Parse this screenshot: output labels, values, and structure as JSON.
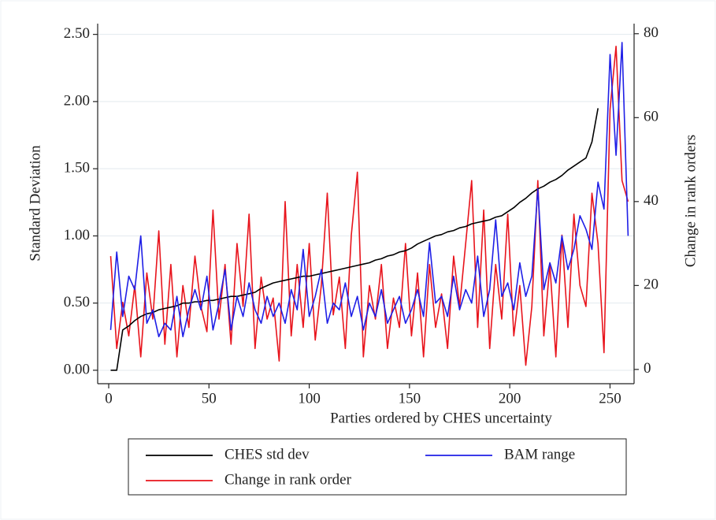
{
  "chart_data": {
    "type": "line",
    "x_label": "Parties ordered by CHES uncertainty",
    "y_label": "Standard Deviation",
    "y2_label": "Change in rank orders",
    "x": [
      1,
      4,
      7,
      10,
      13,
      16,
      19,
      22,
      25,
      28,
      31,
      34,
      37,
      40,
      43,
      46,
      49,
      52,
      55,
      58,
      61,
      64,
      67,
      70,
      73,
      76,
      79,
      82,
      85,
      88,
      91,
      94,
      97,
      100,
      103,
      106,
      109,
      112,
      115,
      118,
      121,
      124,
      127,
      130,
      133,
      136,
      139,
      142,
      145,
      148,
      151,
      154,
      157,
      160,
      163,
      166,
      169,
      172,
      175,
      178,
      181,
      184,
      187,
      190,
      193,
      196,
      199,
      202,
      205,
      208,
      211,
      214,
      217,
      220,
      223,
      226,
      229,
      232,
      235,
      238,
      241,
      244,
      247,
      250,
      253,
      256,
      259
    ],
    "series": [
      {
        "name": "CHES std dev",
        "color": "#000000",
        "axis": "y",
        "values": [
          0.0,
          0.0,
          0.3,
          0.33,
          0.37,
          0.4,
          0.42,
          0.43,
          0.45,
          0.46,
          0.47,
          0.48,
          0.5,
          0.5,
          0.51,
          0.51,
          0.52,
          0.52,
          0.53,
          0.54,
          0.55,
          0.55,
          0.56,
          0.57,
          0.58,
          0.61,
          0.63,
          0.65,
          0.66,
          0.67,
          0.68,
          0.69,
          0.7,
          0.7,
          0.71,
          0.72,
          0.73,
          0.74,
          0.75,
          0.76,
          0.77,
          0.78,
          0.79,
          0.8,
          0.82,
          0.83,
          0.85,
          0.86,
          0.88,
          0.89,
          0.91,
          0.94,
          0.96,
          0.98,
          1.0,
          1.01,
          1.03,
          1.04,
          1.06,
          1.07,
          1.09,
          1.1,
          1.11,
          1.12,
          1.14,
          1.15,
          1.18,
          1.21,
          1.25,
          1.28,
          1.32,
          1.35,
          1.37,
          1.4,
          1.42,
          1.45,
          1.49,
          1.52,
          1.55,
          1.58,
          1.7,
          1.95,
          null,
          null,
          null,
          null,
          null
        ]
      },
      {
        "name": "BAM range",
        "color": "#1f1fe6",
        "axis": "y",
        "values": [
          0.3,
          0.88,
          0.4,
          0.7,
          0.6,
          1.0,
          0.35,
          0.45,
          0.25,
          0.35,
          0.3,
          0.55,
          0.25,
          0.45,
          0.6,
          0.45,
          0.7,
          0.3,
          0.5,
          0.75,
          0.3,
          0.55,
          0.4,
          0.65,
          0.45,
          0.35,
          0.55,
          0.4,
          0.5,
          0.35,
          0.6,
          0.45,
          0.9,
          0.4,
          0.55,
          0.75,
          0.35,
          0.5,
          0.45,
          0.65,
          0.4,
          0.55,
          0.3,
          0.5,
          0.4,
          0.6,
          0.35,
          0.45,
          0.55,
          0.35,
          0.45,
          0.6,
          0.4,
          0.95,
          0.5,
          0.55,
          0.4,
          0.7,
          0.45,
          0.6,
          0.5,
          0.85,
          0.4,
          0.6,
          1.12,
          0.55,
          0.65,
          0.45,
          0.8,
          0.55,
          0.7,
          1.35,
          0.6,
          0.8,
          0.65,
          1.0,
          0.75,
          0.9,
          1.15,
          1.05,
          0.9,
          1.4,
          1.2,
          2.35,
          1.6,
          2.44,
          1.0
        ]
      },
      {
        "name": "Change in rank order",
        "color": "#e8141c",
        "axis": "y2",
        "values": [
          27,
          5,
          16,
          8,
          20,
          3,
          23,
          12,
          33,
          6,
          25,
          3,
          20,
          10,
          27,
          15,
          9,
          38,
          12,
          25,
          6,
          30,
          15,
          37,
          5,
          22,
          12,
          17,
          2,
          40,
          8,
          25,
          10,
          30,
          7,
          20,
          42,
          13,
          22,
          5,
          32,
          47,
          3,
          20,
          12,
          25,
          5,
          17,
          10,
          30,
          8,
          23,
          3,
          25,
          10,
          18,
          5,
          27,
          15,
          30,
          45,
          10,
          38,
          5,
          25,
          12,
          37,
          8,
          20,
          1,
          15,
          45,
          8,
          25,
          3,
          32,
          10,
          37,
          20,
          15,
          42,
          30,
          4,
          62,
          77,
          45,
          40
        ]
      }
    ],
    "xlim": [
      -5.5,
      262
    ],
    "xticks": [
      0,
      50,
      100,
      150,
      200,
      250
    ],
    "ylim": [
      -0.1,
      2.58
    ],
    "yticks": [
      {
        "value": 0,
        "label": "0.00"
      },
      {
        "value": 0.5,
        "label": "0.50"
      },
      {
        "value": 1,
        "label": "1.00"
      },
      {
        "value": 1.5,
        "label": "1.50"
      },
      {
        "value": 2,
        "label": "2.00"
      },
      {
        "value": 2.5,
        "label": "2.50"
      }
    ],
    "y2lim": [
      -3.4,
      82.4
    ],
    "y2ticks": [
      0,
      20,
      40,
      60,
      80
    ],
    "grid": true,
    "legend": "bottom"
  }
}
